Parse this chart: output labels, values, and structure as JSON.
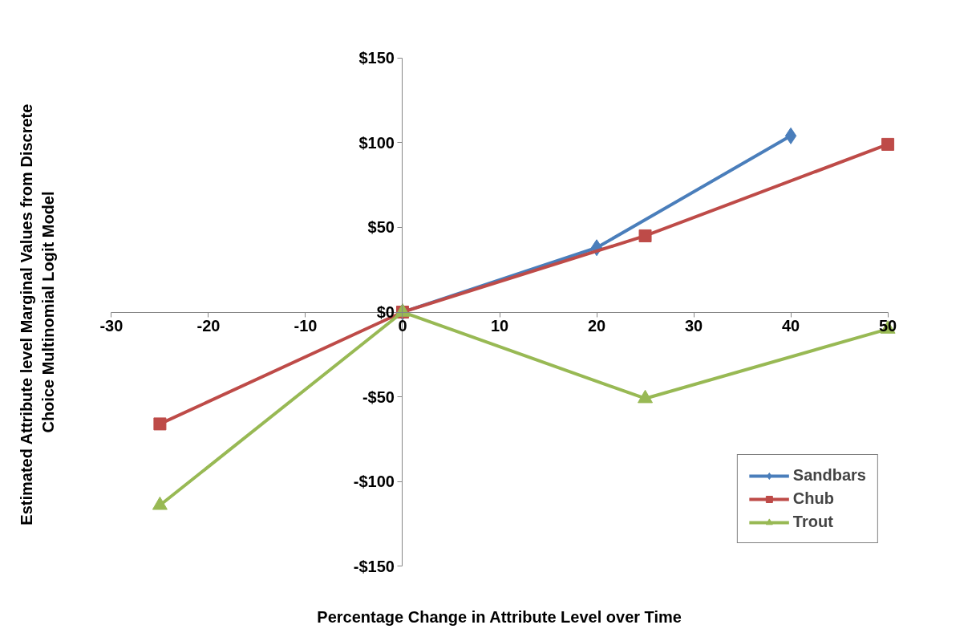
{
  "chart_data": {
    "type": "line",
    "xlabel": "Percentage Change in Attribute Level over Time",
    "ylabel": "Estimated Attribute level Marginal Values from  Discrete\nChoice Multinomial Logit Model",
    "xlim": [
      -30,
      50
    ],
    "xticks": [
      -30,
      -20,
      -10,
      0,
      10,
      20,
      30,
      40,
      50
    ],
    "ylim": [
      -150,
      150
    ],
    "yticks": [
      {
        "value": -150,
        "label": "-$150"
      },
      {
        "value": -100,
        "label": "-$100"
      },
      {
        "value": -50,
        "label": "-$50"
      },
      {
        "value": 0,
        "label": "$0"
      },
      {
        "value": 50,
        "label": "$50"
      },
      {
        "value": 100,
        "label": "$100"
      },
      {
        "value": 150,
        "label": "$150"
      }
    ],
    "grid": false,
    "legend": "bottom right",
    "series": [
      {
        "name": "Sandbars",
        "color": "#4a7ebb",
        "marker": "diamond",
        "x": [
          0,
          20,
          40
        ],
        "values": [
          0,
          38,
          104
        ]
      },
      {
        "name": "Chub",
        "color": "#be4b48",
        "marker": "square",
        "x": [
          -25,
          0,
          25,
          50
        ],
        "values": [
          -66,
          0,
          45,
          99
        ]
      },
      {
        "name": "Trout",
        "color": "#98b954",
        "marker": "triangle",
        "x": [
          -25,
          0,
          25,
          50
        ],
        "values": [
          -114,
          0,
          -51,
          -10
        ]
      }
    ]
  }
}
